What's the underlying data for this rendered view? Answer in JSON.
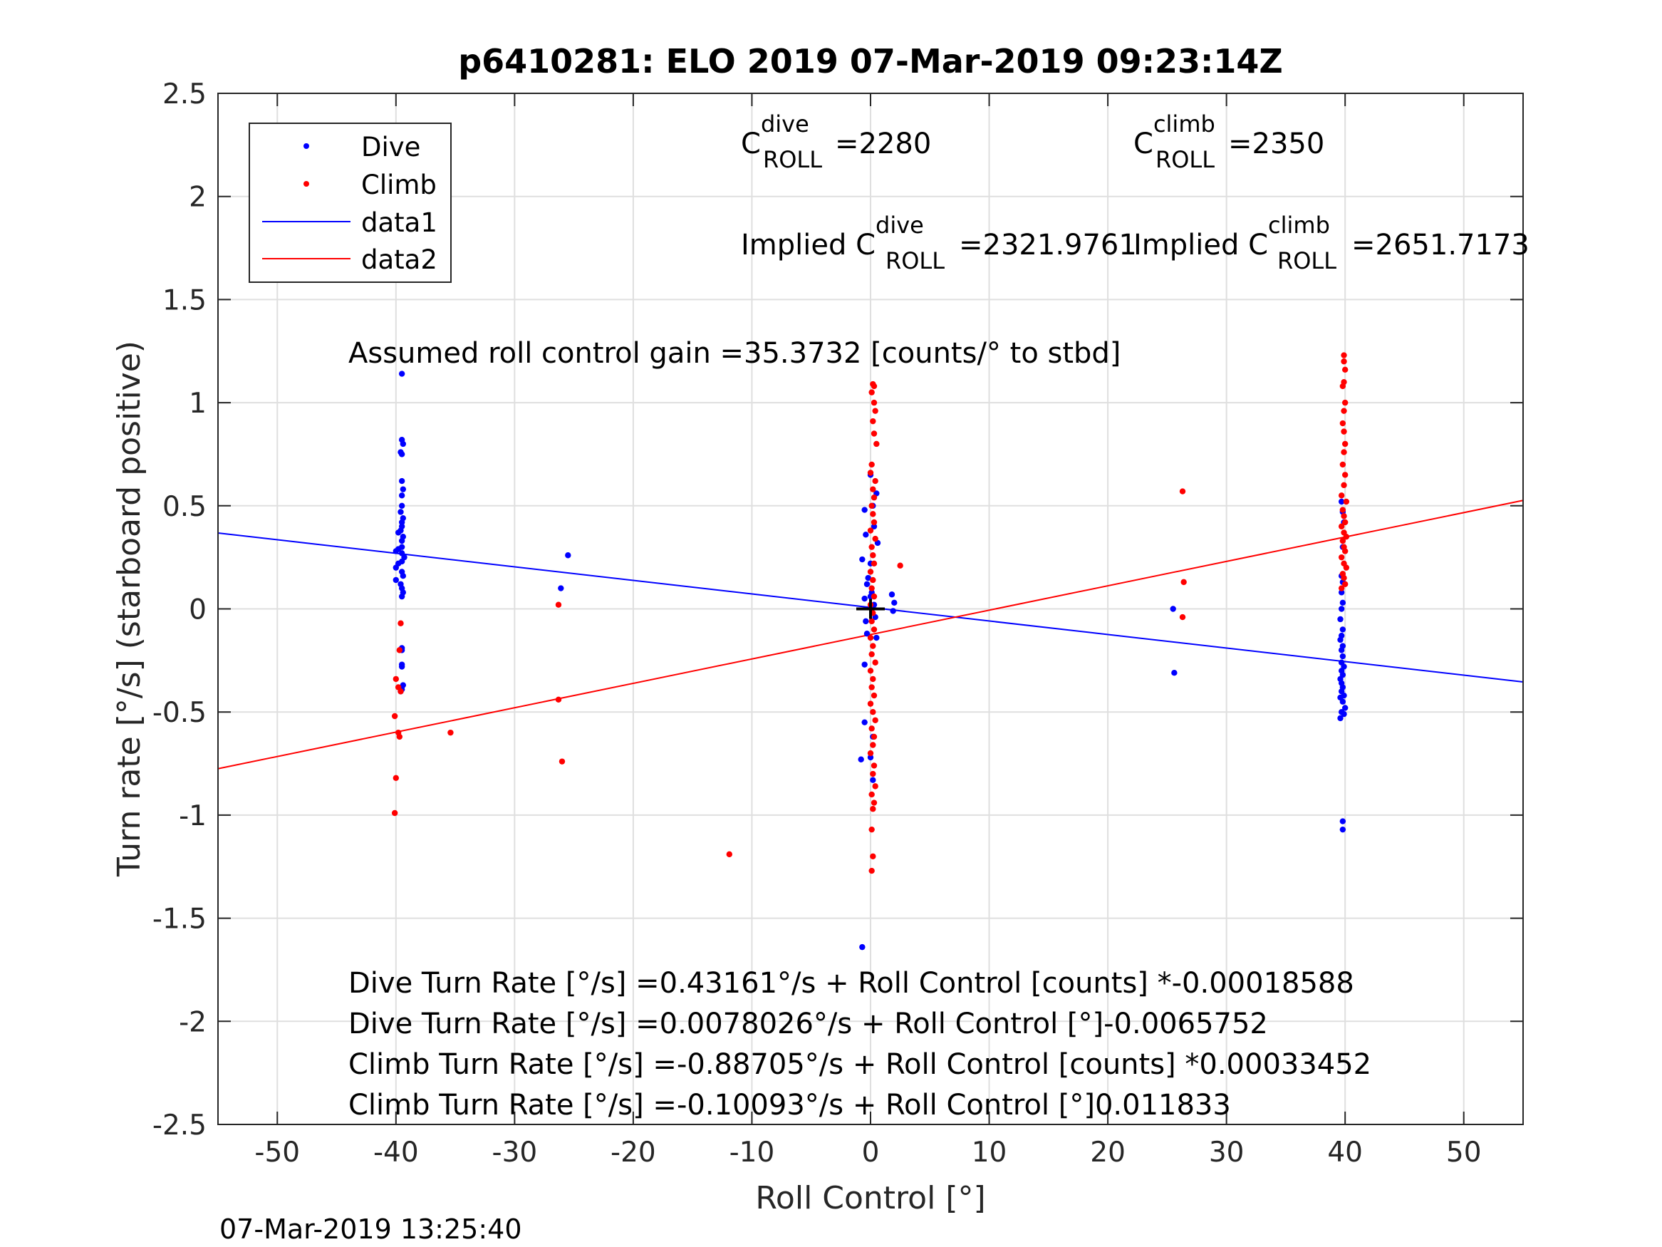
{
  "chart_data": {
    "type": "scatter",
    "title": "p6410281: ELO 2019 07-Mar-2019 09:23:14Z",
    "xlabel": "Roll Control [°]",
    "ylabel": "Turn rate [°/s] (starboard positive)",
    "xlim": [
      -55,
      55
    ],
    "ylim": [
      -2.5,
      2.5
    ],
    "xticks": [
      -50,
      -40,
      -30,
      -20,
      -10,
      0,
      10,
      20,
      30,
      40,
      50
    ],
    "xtick_labels": [
      "-50",
      "-40",
      "-30",
      "-20",
      "-10",
      "0",
      "10",
      "20",
      "30",
      "40",
      "50"
    ],
    "yticks": [
      2.5,
      2,
      1.5,
      1,
      0.5,
      0,
      -0.5,
      -1,
      -1.5,
      -2,
      -2.5
    ],
    "ytick_labels": [
      "2.5",
      "2",
      "1.5",
      "1",
      "0.5",
      "0",
      "-0.5",
      "-1",
      "-1.5",
      "-2",
      "-2.5"
    ],
    "grid": true,
    "legend_position": "top-left",
    "legend": [
      {
        "label": "Dive",
        "color": "#0000ff",
        "marker": "dot"
      },
      {
        "label": "Climb",
        "color": "#ff0000",
        "marker": "dot"
      },
      {
        "label": "data1",
        "color": "#0000ff",
        "marker": "line"
      },
      {
        "label": "data2",
        "color": "#ff0000",
        "marker": "line"
      }
    ],
    "series": [
      {
        "name": "Dive",
        "kind": "scatter",
        "color": "#0000ff",
        "points": [
          [
            -39.5,
            1.14
          ],
          [
            -39.5,
            0.82
          ],
          [
            -39.4,
            0.8
          ],
          [
            -39.6,
            0.76
          ],
          [
            -39.5,
            0.75
          ],
          [
            -39.5,
            0.62
          ],
          [
            -39.4,
            0.58
          ],
          [
            -39.5,
            0.55
          ],
          [
            -39.5,
            0.5
          ],
          [
            -39.6,
            0.47
          ],
          [
            -39.4,
            0.44
          ],
          [
            -39.5,
            0.42
          ],
          [
            -39.5,
            0.4
          ],
          [
            -39.6,
            0.38
          ],
          [
            -39.8,
            0.37
          ],
          [
            -39.4,
            0.35
          ],
          [
            -39.5,
            0.33
          ],
          [
            -39.5,
            0.3
          ],
          [
            -39.8,
            0.29
          ],
          [
            -40.0,
            0.28
          ],
          [
            -39.5,
            0.27
          ],
          [
            -39.3,
            0.25
          ],
          [
            -39.5,
            0.23
          ],
          [
            -39.8,
            0.22
          ],
          [
            -40.0,
            0.2
          ],
          [
            -39.5,
            0.18
          ],
          [
            -39.4,
            0.16
          ],
          [
            -40.0,
            0.14
          ],
          [
            -39.6,
            0.12
          ],
          [
            -39.5,
            0.1
          ],
          [
            -39.4,
            0.08
          ],
          [
            -39.5,
            0.06
          ],
          [
            -39.5,
            -0.19
          ],
          [
            -39.5,
            -0.2
          ],
          [
            -39.5,
            -0.27
          ],
          [
            -39.5,
            -0.28
          ],
          [
            -39.4,
            -0.37
          ],
          [
            -39.5,
            -0.39
          ],
          [
            -39.6,
            -0.4
          ],
          [
            -26.1,
            0.1
          ],
          [
            -25.5,
            0.26
          ],
          [
            -0.5,
            0.48
          ],
          [
            -0.4,
            0.36
          ],
          [
            -0.7,
            0.24
          ],
          [
            -0.3,
            0.12
          ],
          [
            0.0,
            0.06
          ],
          [
            0.3,
            0.02
          ],
          [
            -0.5,
            -0.27
          ],
          [
            -0.8,
            -0.73
          ],
          [
            0.0,
            -0.72
          ],
          [
            0.2,
            -0.83
          ],
          [
            -0.7,
            -1.64
          ],
          [
            0.0,
            0.65
          ],
          [
            0.5,
            0.56
          ],
          [
            0.2,
            0.5
          ],
          [
            0.3,
            0.4
          ],
          [
            0.6,
            0.32
          ],
          [
            0.0,
            0.22
          ],
          [
            -0.2,
            0.15
          ],
          [
            -0.5,
            0.05
          ],
          [
            1.8,
            0.07
          ],
          [
            2.0,
            0.03
          ],
          [
            1.9,
            -0.01
          ],
          [
            -0.5,
            -0.55
          ],
          [
            0.2,
            -0.62
          ],
          [
            -0.3,
            -0.12
          ],
          [
            0.5,
            -0.14
          ],
          [
            0.4,
            -0.04
          ],
          [
            0.1,
            0.08
          ],
          [
            -0.4,
            -0.06
          ],
          [
            25.5,
            0.0
          ],
          [
            25.6,
            -0.31
          ],
          [
            39.7,
            0.52
          ],
          [
            39.8,
            0.47
          ],
          [
            39.9,
            0.42
          ],
          [
            39.8,
            0.3
          ],
          [
            39.7,
            0.16
          ],
          [
            39.8,
            0.13
          ],
          [
            39.7,
            0.08
          ],
          [
            39.8,
            0.03
          ],
          [
            39.7,
            0.0
          ],
          [
            39.6,
            -0.05
          ],
          [
            39.8,
            -0.1
          ],
          [
            39.7,
            -0.13
          ],
          [
            39.6,
            -0.15
          ],
          [
            39.8,
            -0.18
          ],
          [
            39.7,
            -0.2
          ],
          [
            39.8,
            -0.23
          ],
          [
            39.7,
            -0.26
          ],
          [
            39.9,
            -0.28
          ],
          [
            39.7,
            -0.3
          ],
          [
            39.8,
            -0.32
          ],
          [
            39.6,
            -0.34
          ],
          [
            39.7,
            -0.36
          ],
          [
            39.8,
            -0.38
          ],
          [
            39.7,
            -0.4
          ],
          [
            39.9,
            -0.42
          ],
          [
            39.6,
            -0.43
          ],
          [
            39.8,
            -0.45
          ],
          [
            40.0,
            -0.48
          ],
          [
            39.7,
            -0.5
          ],
          [
            39.9,
            -0.51
          ],
          [
            39.6,
            -0.53
          ],
          [
            39.8,
            -1.03
          ],
          [
            39.8,
            -1.07
          ]
        ]
      },
      {
        "name": "Climb",
        "kind": "scatter",
        "color": "#ff0000",
        "points": [
          [
            -39.6,
            -0.07
          ],
          [
            -39.7,
            -0.2
          ],
          [
            -40.0,
            -0.34
          ],
          [
            -39.8,
            -0.38
          ],
          [
            -39.6,
            -0.4
          ],
          [
            -40.1,
            -0.52
          ],
          [
            -39.8,
            -0.6
          ],
          [
            -39.7,
            -0.62
          ],
          [
            -40.0,
            -0.82
          ],
          [
            -40.1,
            -0.99
          ],
          [
            -35.4,
            -0.6
          ],
          [
            -26.3,
            0.02
          ],
          [
            -26.3,
            -0.44
          ],
          [
            -26.0,
            -0.74
          ],
          [
            -11.9,
            -1.19
          ],
          [
            0.2,
            1.09
          ],
          [
            0.3,
            1.08
          ],
          [
            0.1,
            1.05
          ],
          [
            0.3,
            1.0
          ],
          [
            0.4,
            0.96
          ],
          [
            0.2,
            0.91
          ],
          [
            0.3,
            0.85
          ],
          [
            0.5,
            0.8
          ],
          [
            0.1,
            0.7
          ],
          [
            0.0,
            0.66
          ],
          [
            0.4,
            0.62
          ],
          [
            0.2,
            0.58
          ],
          [
            0.3,
            0.54
          ],
          [
            0.1,
            0.5
          ],
          [
            0.2,
            0.46
          ],
          [
            0.3,
            0.42
          ],
          [
            0.0,
            0.38
          ],
          [
            0.4,
            0.34
          ],
          [
            0.1,
            0.3
          ],
          [
            0.2,
            0.26
          ],
          [
            0.3,
            0.22
          ],
          [
            0.0,
            0.18
          ],
          [
            0.2,
            0.14
          ],
          [
            0.1,
            0.1
          ],
          [
            0.3,
            0.06
          ],
          [
            0.0,
            0.02
          ],
          [
            0.2,
            -0.02
          ],
          [
            0.1,
            -0.06
          ],
          [
            0.3,
            -0.1
          ],
          [
            0.0,
            -0.14
          ],
          [
            0.2,
            -0.18
          ],
          [
            0.1,
            -0.22
          ],
          [
            0.4,
            -0.26
          ],
          [
            0.0,
            -0.3
          ],
          [
            0.2,
            -0.34
          ],
          [
            0.1,
            -0.38
          ],
          [
            0.3,
            -0.42
          ],
          [
            0.0,
            -0.46
          ],
          [
            0.2,
            -0.5
          ],
          [
            0.4,
            -0.54
          ],
          [
            0.1,
            -0.58
          ],
          [
            0.3,
            -0.62
          ],
          [
            0.2,
            -0.66
          ],
          [
            0.0,
            -0.7
          ],
          [
            0.3,
            -0.76
          ],
          [
            0.2,
            -0.8
          ],
          [
            0.4,
            -0.86
          ],
          [
            0.1,
            -0.9
          ],
          [
            0.3,
            -0.94
          ],
          [
            0.2,
            -0.97
          ],
          [
            0.1,
            -1.07
          ],
          [
            0.2,
            -1.2
          ],
          [
            0.1,
            -1.27
          ],
          [
            2.5,
            0.21
          ],
          [
            26.3,
            0.57
          ],
          [
            26.4,
            0.13
          ],
          [
            26.3,
            -0.04
          ],
          [
            39.9,
            1.23
          ],
          [
            39.9,
            1.2
          ],
          [
            40.0,
            1.16
          ],
          [
            39.9,
            1.1
          ],
          [
            39.8,
            1.08
          ],
          [
            40.0,
            1.0
          ],
          [
            39.9,
            0.96
          ],
          [
            39.8,
            0.9
          ],
          [
            39.9,
            0.86
          ],
          [
            40.0,
            0.8
          ],
          [
            39.9,
            0.76
          ],
          [
            39.8,
            0.7
          ],
          [
            40.0,
            0.65
          ],
          [
            39.9,
            0.6
          ],
          [
            39.7,
            0.55
          ],
          [
            40.1,
            0.52
          ],
          [
            39.8,
            0.48
          ],
          [
            39.9,
            0.45
          ],
          [
            40.0,
            0.42
          ],
          [
            39.7,
            0.4
          ],
          [
            39.9,
            0.37
          ],
          [
            40.1,
            0.35
          ],
          [
            39.8,
            0.33
          ],
          [
            39.9,
            0.3
          ],
          [
            40.0,
            0.28
          ],
          [
            39.7,
            0.25
          ],
          [
            39.9,
            0.22
          ],
          [
            40.1,
            0.2
          ],
          [
            39.8,
            0.17
          ],
          [
            39.9,
            0.15
          ],
          [
            40.0,
            0.12
          ],
          [
            39.7,
            0.1
          ]
        ]
      },
      {
        "name": "data1",
        "kind": "line",
        "color": "#0000ff",
        "x": [
          -55,
          55
        ],
        "y": [
          0.368,
          -0.354
        ]
      },
      {
        "name": "data2",
        "kind": "line",
        "color": "#ff0000",
        "x": [
          -55,
          55
        ],
        "y": [
          -0.775,
          0.526
        ]
      }
    ],
    "marker_cross": {
      "x": 0,
      "y": 0,
      "color": "#000000"
    },
    "annotations": {
      "c_dive_base": "C",
      "c_dive_sup": "dive",
      "c_dive_sub": "ROLL",
      "c_dive_value": "=2280",
      "c_climb_base": "C",
      "c_climb_sup": "climb",
      "c_climb_sub": "ROLL",
      "c_climb_value": "=2350",
      "implied_dive_prefix": "Implied C",
      "implied_dive_sup": "dive",
      "implied_dive_sub": "ROLL",
      "implied_dive_value": "=2321.9761",
      "implied_climb_prefix": "Implied C",
      "implied_climb_sup": "climb",
      "implied_climb_sub": "ROLL",
      "implied_climb_value": "=2651.7173",
      "assumed_gain": "Assumed roll control gain =35.3732 [counts/° to stbd]",
      "eq1": "Dive Turn Rate [°/s] =0.43161°/s + Roll Control [counts] *-0.00018588",
      "eq2": "Dive Turn Rate [°/s] =0.0078026°/s + Roll Control [°]-0.0065752",
      "eq3": "Climb Turn Rate [°/s] =-0.88705°/s + Roll Control [counts] *0.00033452",
      "eq4": "Climb Turn Rate [°/s] =-0.10093°/s + Roll Control [°]0.011833"
    },
    "timestamp": "07-Mar-2019 13:25:40"
  }
}
